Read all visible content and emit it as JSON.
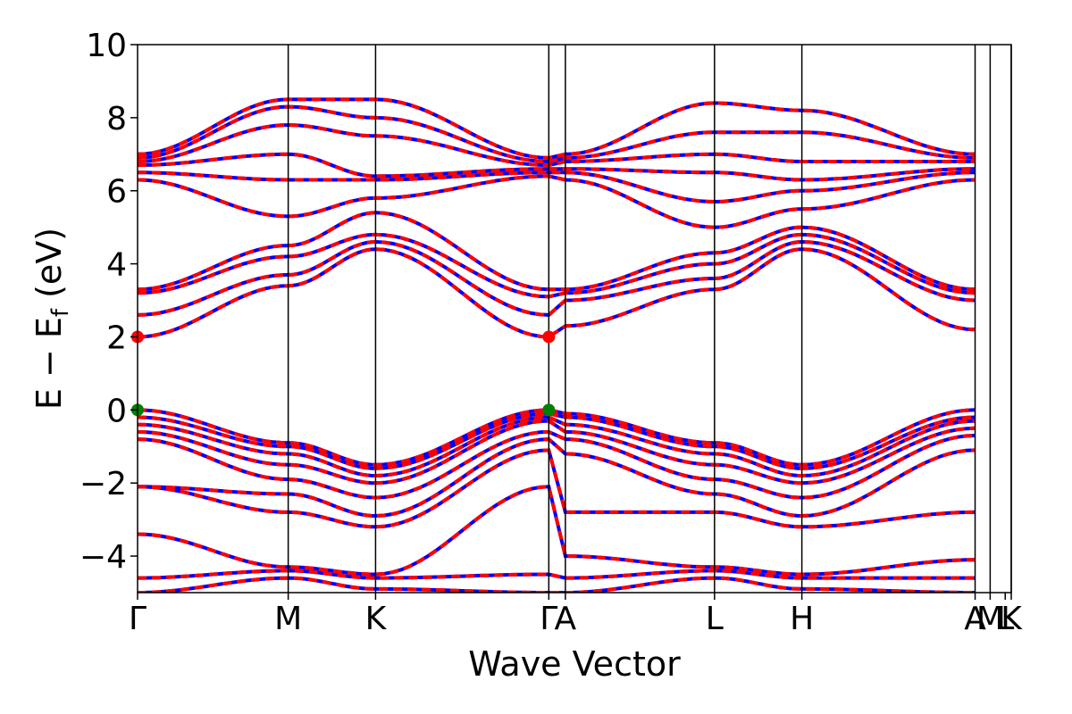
{
  "chart_data": {
    "type": "line",
    "xlabel": "Wave Vector",
    "ylabel": "E − E_f (eV)",
    "ylabel_parts": [
      "E − E",
      "f",
      " (eV)"
    ],
    "ylim": [
      -5,
      10
    ],
    "yticks": [
      10,
      8,
      6,
      4,
      2,
      0,
      -2,
      -4
    ],
    "ytick_labels": [
      "10",
      "8",
      "6",
      "4",
      "2",
      "0",
      "−2",
      "−4"
    ],
    "x_range": [
      0,
      5.8
    ],
    "kpoints": [
      {
        "label": "Γ",
        "x": 0
      },
      {
        "label": "M",
        "x": 1.0
      },
      {
        "label": "K",
        "x": 1.58
      },
      {
        "label": "Γ",
        "x": 2.73
      },
      {
        "label": "A",
        "x": 2.84
      },
      {
        "label": "L",
        "x": 3.83
      },
      {
        "label": "H",
        "x": 4.41
      },
      {
        "label": "A",
        "x": 5.56
      },
      {
        "label": "M",
        "x": 5.66
      },
      {
        "label": "L",
        "x": 5.76
      },
      {
        "label": "K",
        "x": 5.8
      }
    ],
    "kpoint_lines": [
      1.0,
      1.58,
      2.73,
      2.84,
      3.83,
      4.41,
      5.56,
      5.66,
      5.8
    ],
    "legend": "none",
    "grid": false,
    "series_style": {
      "up_color": "#0000ff",
      "down_color": "#ff0000",
      "down_dash": "dashed"
    },
    "vbm_markers": [
      {
        "x": 0,
        "y": 0
      },
      {
        "x": 2.73,
        "y": 0
      }
    ],
    "cbm_markers": [
      {
        "x": 0,
        "y": 2.0
      },
      {
        "x": 2.73,
        "y": 2.0
      }
    ],
    "vbm_color": "#008000",
    "cbm_color": "#ff0000",
    "bands": [
      {
        "band": "v1",
        "y": [
          0.0,
          -0.9,
          -1.5,
          0.0,
          -0.1,
          -0.9,
          -1.5,
          0.0
        ]
      },
      {
        "band": "v2",
        "y": [
          -0.2,
          -1.0,
          -1.6,
          -0.1,
          -0.2,
          -1.0,
          -1.6,
          -0.2
        ]
      },
      {
        "band": "v3",
        "y": [
          -0.4,
          -1.2,
          -1.8,
          -0.2,
          -0.4,
          -1.2,
          -1.8,
          -0.3
        ]
      },
      {
        "band": "v4",
        "y": [
          -0.6,
          -1.5,
          -2.0,
          -0.3,
          -0.6,
          -1.5,
          -2.0,
          -0.5
        ]
      },
      {
        "band": "v5",
        "y": [
          -0.8,
          -1.9,
          -2.4,
          -0.6,
          -0.8,
          -1.9,
          -2.4,
          -0.7
        ]
      },
      {
        "band": "v6",
        "y": [
          -2.1,
          -2.3,
          -2.9,
          -0.8,
          -1.2,
          -2.3,
          -2.9,
          -1.1
        ]
      },
      {
        "band": "v7",
        "y": [
          -2.1,
          -2.8,
          -3.2,
          -1.1,
          -2.8,
          -2.8,
          -3.2,
          -2.8
        ]
      },
      {
        "band": "v8",
        "y": [
          -3.4,
          -4.3,
          -4.5,
          -2.1,
          -4.0,
          -4.3,
          -4.5,
          -4.1
        ]
      },
      {
        "band": "v9",
        "y": [
          -4.6,
          -4.4,
          -4.6,
          -4.5,
          -4.6,
          -4.4,
          -4.6,
          -4.6
        ]
      },
      {
        "band": "v10",
        "y": [
          -5.0,
          -4.6,
          -4.9,
          -5.0,
          -5.0,
          -4.6,
          -4.9,
          -5.0
        ]
      },
      {
        "band": "c1",
        "y": [
          2.0,
          3.4,
          4.4,
          2.0,
          2.3,
          3.3,
          4.4,
          2.2
        ]
      },
      {
        "band": "c2",
        "y": [
          2.6,
          3.7,
          4.6,
          2.6,
          3.0,
          3.6,
          4.6,
          3.0
        ]
      },
      {
        "band": "c3",
        "y": [
          3.2,
          4.2,
          4.8,
          3.1,
          3.2,
          4.0,
          4.8,
          3.2
        ]
      },
      {
        "band": "c4",
        "y": [
          3.3,
          4.5,
          5.4,
          3.3,
          3.3,
          4.3,
          5.0,
          3.3
        ]
      },
      {
        "band": "c5",
        "y": [
          6.3,
          5.3,
          5.8,
          6.4,
          6.3,
          5.0,
          5.5,
          6.3
        ]
      },
      {
        "band": "c6",
        "y": [
          6.5,
          6.3,
          6.3,
          6.5,
          6.5,
          5.7,
          6.0,
          6.5
        ]
      },
      {
        "band": "c7",
        "y": [
          6.7,
          7.0,
          6.4,
          6.6,
          6.6,
          6.5,
          6.3,
          6.6
        ]
      },
      {
        "band": "c8",
        "y": [
          6.8,
          7.8,
          7.5,
          6.7,
          6.8,
          7.0,
          6.8,
          6.8
        ]
      },
      {
        "band": "c9",
        "y": [
          6.9,
          8.3,
          8.0,
          6.8,
          6.9,
          7.6,
          7.6,
          6.9
        ]
      },
      {
        "band": "c10",
        "y": [
          7.0,
          8.5,
          8.5,
          6.9,
          7.0,
          8.4,
          8.2,
          7.0
        ]
      }
    ]
  }
}
